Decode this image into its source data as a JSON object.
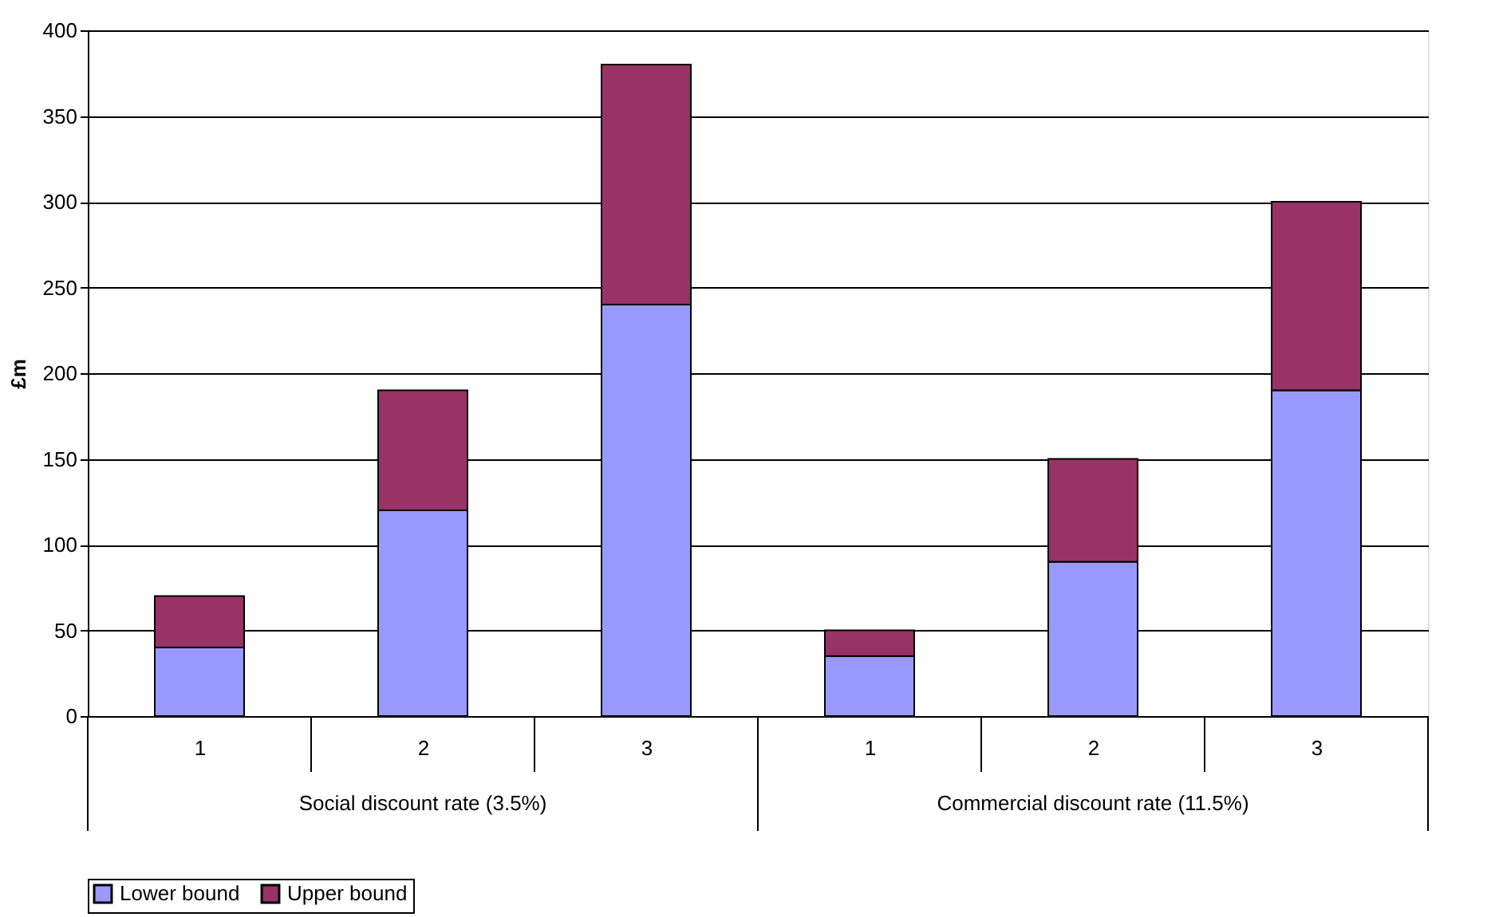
{
  "chart_data": {
    "type": "bar",
    "stacked": true,
    "ylabel": "£m",
    "categories": [
      "1",
      "2",
      "3",
      "1",
      "2",
      "3"
    ],
    "series": [
      {
        "name": "Lower bound",
        "color": "#9999ff",
        "values": [
          40,
          120,
          240,
          35,
          90,
          190
        ]
      },
      {
        "name": "Upper bound",
        "color": "#993366",
        "values": [
          30,
          70,
          140,
          15,
          60,
          110
        ]
      }
    ],
    "ylim": [
      0,
      400
    ],
    "yticks": [
      0,
      50,
      100,
      150,
      200,
      250,
      300,
      350,
      400
    ],
    "grid": "y",
    "legend": "bottom",
    "annotations": [
      "Social discount rate (3.5%)",
      "Commercial discount rate (11.5%)"
    ]
  }
}
